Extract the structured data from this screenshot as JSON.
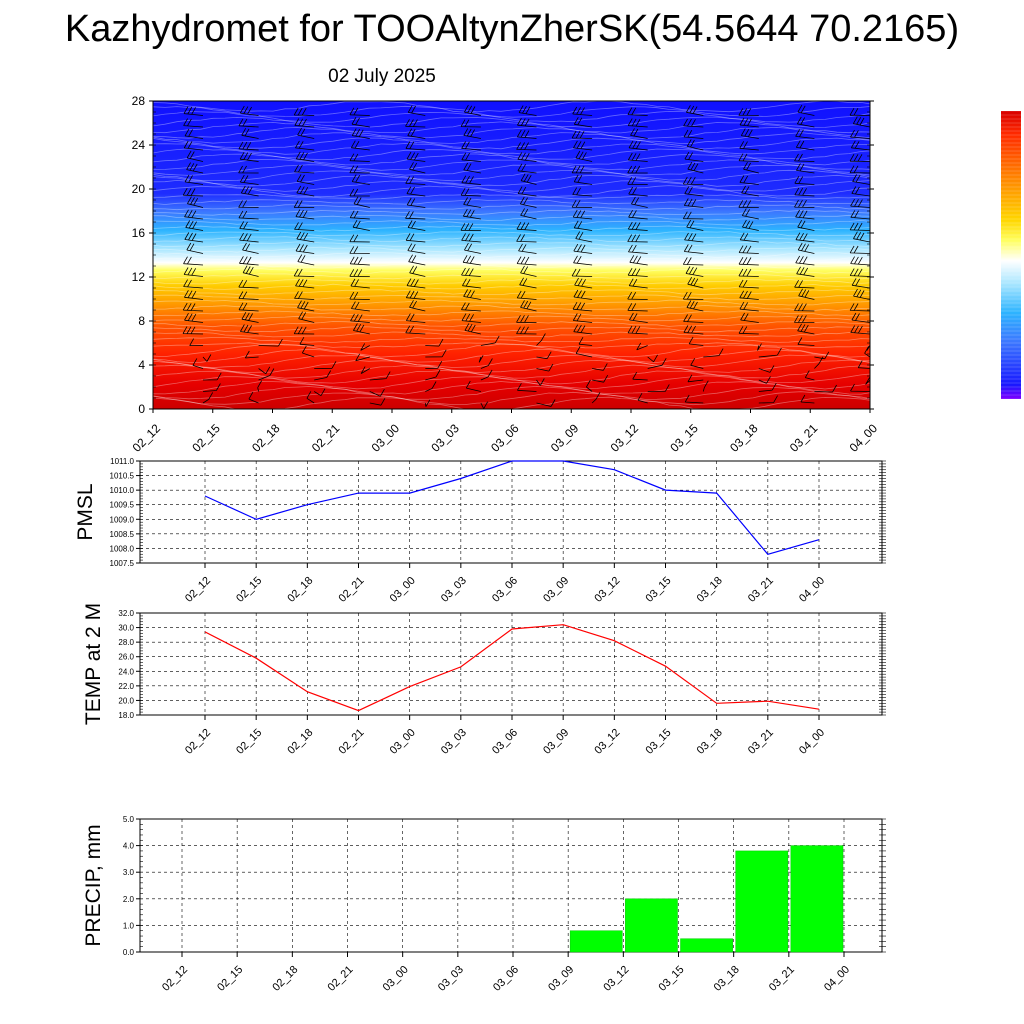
{
  "header": {
    "title": "Kazhydromet for TOOAltynZherSK(54.5644 70.2165)",
    "date": "02 July 2025"
  },
  "chart_data": [
    {
      "type": "heatmap",
      "x_ticks": [
        "02_12",
        "02_15",
        "02_18",
        "02_21",
        "03_00",
        "03_03",
        "03_06",
        "03_09",
        "03_12",
        "03_15",
        "03_18",
        "03_21",
        "04_00"
      ],
      "y_ticks": [
        "0",
        "4",
        "8",
        "12",
        "16",
        "20",
        "24",
        "28"
      ],
      "ylim": [
        0,
        28
      ],
      "colorbar": [
        "#7f00ff",
        "#1818ff",
        "#3c78ff",
        "#2db4ff",
        "#a8e6ff",
        "#ffffff",
        "#ffff60",
        "#ffd700",
        "#ffa000",
        "#ff6600",
        "#ff2a00",
        "#d80000"
      ]
    },
    {
      "type": "line",
      "ylabel": "PMSL",
      "x": [
        "02_12",
        "02_15",
        "02_18",
        "02_21",
        "03_00",
        "03_03",
        "03_06",
        "03_09",
        "03_12",
        "03_15",
        "03_18",
        "03_21",
        "04_00"
      ],
      "values": [
        1009.8,
        1009.0,
        1009.5,
        1009.9,
        1009.9,
        1010.4,
        1011.0,
        1011.0,
        1010.7,
        1010.0,
        1009.9,
        1007.8,
        1008.3
      ],
      "ylim": [
        1007.5,
        1011.0
      ],
      "y_ticks": [
        "1007.5",
        "1008.0",
        "1008.5",
        "1009.0",
        "1009.5",
        "1010.0",
        "1010.5",
        "1011.0"
      ],
      "color": "#0000ff",
      "grid": true
    },
    {
      "type": "line",
      "ylabel": "TEMP at 2 M",
      "x": [
        "02_12",
        "02_15",
        "02_18",
        "02_21",
        "03_00",
        "03_03",
        "03_06",
        "03_09",
        "03_12",
        "03_15",
        "03_18",
        "03_21",
        "04_00"
      ],
      "values": [
        29.4,
        25.8,
        21.2,
        18.6,
        21.9,
        24.6,
        29.8,
        30.4,
        28.2,
        24.7,
        19.6,
        19.9,
        18.8
      ],
      "ylim": [
        18.0,
        32.0
      ],
      "y_ticks": [
        "18.0",
        "20.0",
        "22.0",
        "24.0",
        "26.0",
        "28.0",
        "30.0",
        "32.0"
      ],
      "color": "#ff0000",
      "grid": true
    },
    {
      "type": "bar",
      "ylabel": "PRECIP, mm",
      "categories": [
        "02_12",
        "02_15",
        "02_18",
        "02_21",
        "03_00",
        "03_03",
        "03_06",
        "03_09",
        "03_12",
        "03_15",
        "03_18",
        "03_21",
        "04_00"
      ],
      "values": [
        0,
        0,
        0,
        0,
        0,
        0,
        0,
        0,
        0.8,
        2.0,
        0.5,
        3.8,
        4.0
      ],
      "ylim": [
        0,
        5.0
      ],
      "y_ticks": [
        "0.0",
        "1.0",
        "2.0",
        "3.0",
        "4.0",
        "5.0"
      ],
      "color": "#00ff00",
      "grid": true
    }
  ]
}
